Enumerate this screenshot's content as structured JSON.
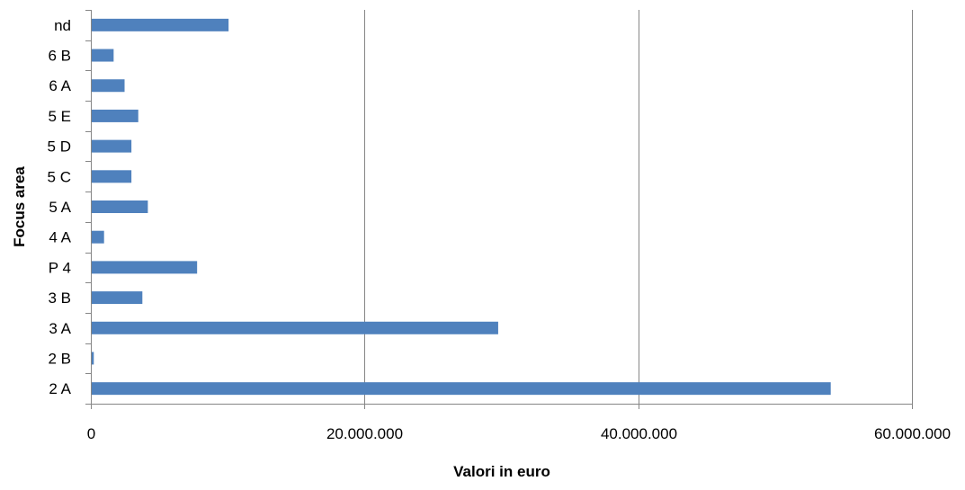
{
  "chart_data": {
    "type": "bar",
    "orientation": "horizontal",
    "categories": [
      "2 A",
      "2 B",
      "3 A",
      "3 B",
      "P 4",
      "4 A",
      "5 A",
      "5 C",
      "5 D",
      "5 E",
      "6 A",
      "6 B",
      "nd"
    ],
    "values": [
      54000000,
      150000,
      29700000,
      3700000,
      7700000,
      900000,
      4100000,
      2900000,
      2900000,
      3400000,
      2400000,
      1600000,
      10000000
    ],
    "xlabel": "Valori in euro",
    "ylabel": "Focus area",
    "xlim": [
      0,
      60000000
    ],
    "x_ticks": [
      0,
      20000000,
      40000000,
      60000000
    ],
    "x_tick_labels": [
      "0",
      "20.000.000",
      "40.000.000",
      "60.000.000"
    ],
    "grid": "vertical major gridlines",
    "legend": "none",
    "bar_color": "#4f81bd",
    "grid_color": "#868686"
  }
}
